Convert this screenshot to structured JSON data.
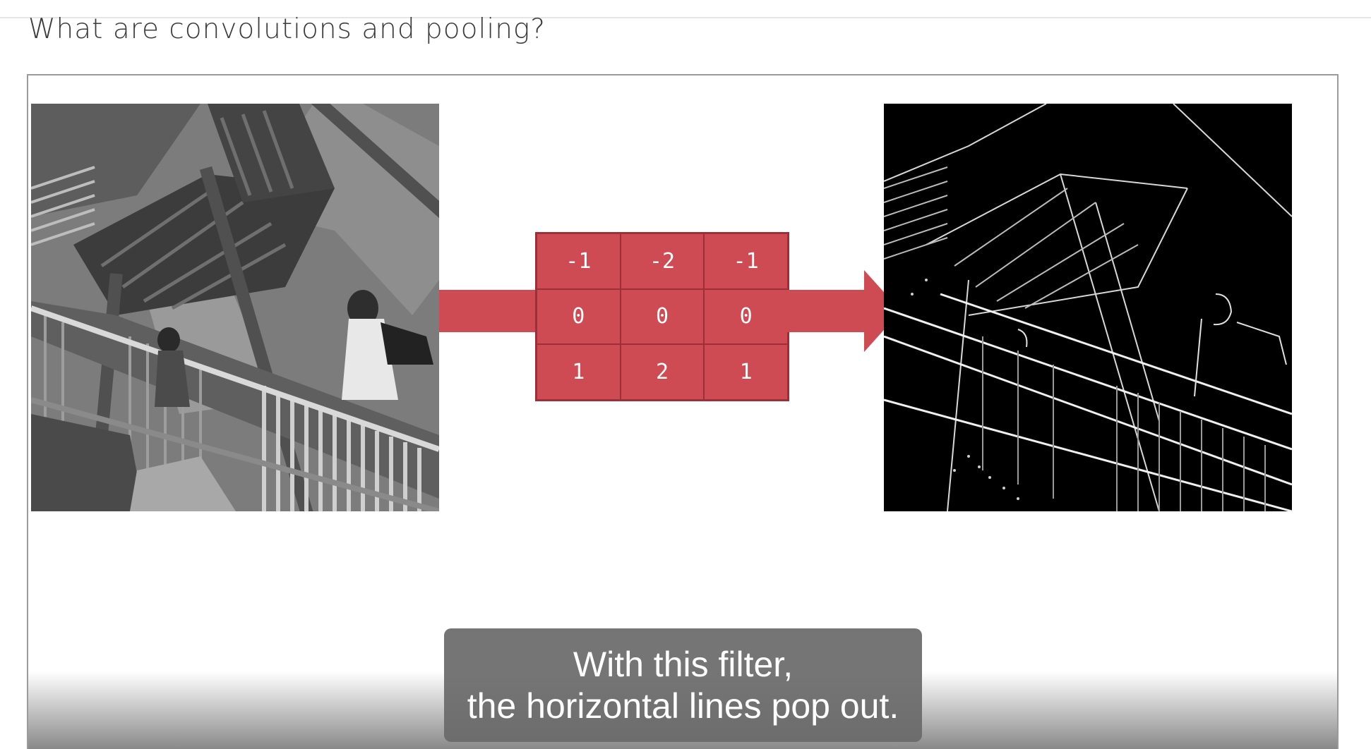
{
  "page": {
    "title": "What are convolutions and pooling?"
  },
  "video": {
    "kernel": [
      [
        "-1",
        "-2",
        "-1"
      ],
      [
        "0",
        "0",
        "0"
      ],
      [
        "1",
        "2",
        "1"
      ]
    ],
    "caption_lines": [
      "With this filter,",
      "the horizontal lines pop out."
    ],
    "accent_color": "#cf4b54",
    "accent_border_color": "#9e2f39"
  }
}
